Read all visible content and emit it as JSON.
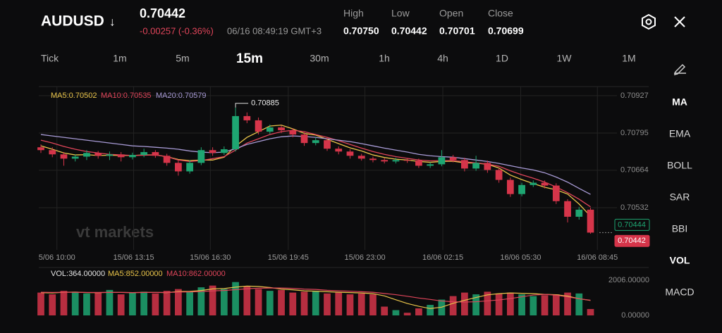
{
  "header": {
    "symbol": "AUDUSD",
    "arrow": "↓",
    "price": "0.70442",
    "change": "-0.00257 (-0.36%)",
    "time": "06/16 08:49:19 GMT+3",
    "stats": [
      {
        "label": "High",
        "value": "0.70750"
      },
      {
        "label": "Low",
        "value": "0.70442"
      },
      {
        "label": "Open",
        "value": "0.70701"
      },
      {
        "label": "Close",
        "value": "0.70699"
      }
    ]
  },
  "timeframes": {
    "items": [
      "Tick",
      "1m",
      "5m",
      "15m",
      "30m",
      "1h",
      "4h",
      "1D",
      "1W",
      "1M"
    ],
    "active": 3
  },
  "indicators": [
    {
      "label": "MA",
      "active": true
    },
    {
      "label": "EMA",
      "active": false
    },
    {
      "label": "BOLL",
      "active": false
    },
    {
      "label": "SAR",
      "active": false
    },
    {
      "label": "BBI",
      "active": false
    },
    {
      "label": "VOL",
      "active": true
    },
    {
      "label": "MACD",
      "active": false
    }
  ],
  "chart_data": [
    {
      "type": "candlestick",
      "watermark": "vt markets",
      "up_color": "#1ea672",
      "down_color": "#d6354a",
      "legend": [
        {
          "label": "MA5:0.70502",
          "color": "#e9c44a"
        },
        {
          "label": "MA10:0.70535",
          "color": "#e0455a"
        },
        {
          "label": "MA20:0.70579",
          "color": "#a89bd6"
        }
      ],
      "xlim": [
        0,
        50
      ],
      "ylim": [
        0.70383,
        0.70959
      ],
      "grid": true,
      "xticks": [
        {
          "value": 1.4,
          "label": "5/06 10:00"
        },
        {
          "value": 8.1,
          "label": "15/06 13:15"
        },
        {
          "value": 14.8,
          "label": "15/06 16:30"
        },
        {
          "value": 21.6,
          "label": "15/06 19:45"
        },
        {
          "value": 28.3,
          "label": "15/06 23:00"
        },
        {
          "value": 35.1,
          "label": "16/06 02:15"
        },
        {
          "value": 41.9,
          "label": "16/06 05:30"
        },
        {
          "value": 48.6,
          "label": "16/06 08:45"
        }
      ],
      "yticks": [
        0.70927,
        0.70795,
        0.70664,
        0.70532
      ],
      "open": [
        0.70745,
        0.70735,
        0.7072,
        0.70705,
        0.70712,
        0.70725,
        0.70715,
        0.7072,
        0.7071,
        0.70718,
        0.70728,
        0.70715,
        0.7069,
        0.7066,
        0.7069,
        0.70735,
        0.70725,
        0.70738,
        0.70855,
        0.7084,
        0.708,
        0.70815,
        0.70805,
        0.7079,
        0.7076,
        0.7077,
        0.7074,
        0.7073,
        0.70715,
        0.70705,
        0.707,
        0.70695,
        0.707,
        0.70698,
        0.7068,
        0.70685,
        0.7071,
        0.707,
        0.7067,
        0.7069,
        0.70665,
        0.7063,
        0.7058,
        0.70612,
        0.7062,
        0.7061,
        0.70555,
        0.705,
        0.70525
      ],
      "high": [
        0.70755,
        0.70745,
        0.70728,
        0.7072,
        0.70735,
        0.70732,
        0.7073,
        0.70728,
        0.70726,
        0.7074,
        0.70735,
        0.70722,
        0.70698,
        0.707,
        0.70745,
        0.70745,
        0.70748,
        0.70885,
        0.70868,
        0.7085,
        0.70825,
        0.70822,
        0.70812,
        0.70798,
        0.7078,
        0.70778,
        0.70748,
        0.70738,
        0.70722,
        0.70712,
        0.70708,
        0.70708,
        0.70706,
        0.70705,
        0.70692,
        0.70735,
        0.70718,
        0.70708,
        0.70715,
        0.70698,
        0.70672,
        0.70638,
        0.7062,
        0.70628,
        0.70628,
        0.70618,
        0.70562,
        0.70535,
        0.70532
      ],
      "low": [
        0.70725,
        0.7071,
        0.7068,
        0.70695,
        0.707,
        0.70705,
        0.707,
        0.70695,
        0.70702,
        0.7071,
        0.70708,
        0.7068,
        0.70645,
        0.70652,
        0.70682,
        0.70715,
        0.70718,
        0.7073,
        0.7083,
        0.7079,
        0.70792,
        0.70795,
        0.7078,
        0.7075,
        0.70752,
        0.70732,
        0.7072,
        0.70705,
        0.70698,
        0.70692,
        0.70688,
        0.70688,
        0.7069,
        0.70672,
        0.70672,
        0.70678,
        0.70692,
        0.7066,
        0.70662,
        0.70655,
        0.7062,
        0.7057,
        0.70572,
        0.70605,
        0.706,
        0.70545,
        0.7048,
        0.7049,
        0.7044
      ],
      "close": [
        0.70735,
        0.7072,
        0.70705,
        0.70712,
        0.70725,
        0.70715,
        0.7072,
        0.7071,
        0.70718,
        0.70728,
        0.70715,
        0.7069,
        0.7066,
        0.7069,
        0.70735,
        0.70725,
        0.70738,
        0.70855,
        0.7084,
        0.708,
        0.70815,
        0.70805,
        0.7079,
        0.7076,
        0.7077,
        0.7074,
        0.7073,
        0.70715,
        0.70705,
        0.707,
        0.70695,
        0.707,
        0.70698,
        0.7068,
        0.70685,
        0.7071,
        0.707,
        0.7067,
        0.7069,
        0.70665,
        0.7063,
        0.7058,
        0.70612,
        0.7062,
        0.7061,
        0.70555,
        0.705,
        0.70525,
        0.70444
      ],
      "series": [
        {
          "name": "MA5",
          "color": "#e9c44a",
          "values": [
            0.7075,
            0.70738,
            0.70725,
            0.70718,
            0.70719,
            0.70716,
            0.70717,
            0.70716,
            0.70716,
            0.70718,
            0.70718,
            0.70712,
            0.70702,
            0.70698,
            0.707,
            0.707,
            0.7071,
            0.70749,
            0.7078,
            0.708,
            0.7082,
            0.70823,
            0.7081,
            0.70794,
            0.70788,
            0.70773,
            0.70758,
            0.70743,
            0.70732,
            0.70718,
            0.70709,
            0.70703,
            0.707,
            0.70695,
            0.70692,
            0.70695,
            0.70696,
            0.7069,
            0.70689,
            0.70685,
            0.70672,
            0.70647,
            0.70631,
            0.70617,
            0.70604,
            0.70595,
            0.7058,
            0.70545,
            0.70502
          ]
        },
        {
          "name": "MA10",
          "color": "#e0455a",
          "values": [
            0.7077,
            0.7076,
            0.70748,
            0.70738,
            0.7073,
            0.70725,
            0.7072,
            0.70718,
            0.70716,
            0.70717,
            0.70718,
            0.70712,
            0.707,
            0.70695,
            0.70698,
            0.70705,
            0.70712,
            0.70735,
            0.7076,
            0.70775,
            0.7079,
            0.708,
            0.70805,
            0.708,
            0.7079,
            0.7078,
            0.70768,
            0.70755,
            0.70742,
            0.7073,
            0.7072,
            0.70712,
            0.70706,
            0.707,
            0.70697,
            0.70698,
            0.70698,
            0.70694,
            0.7069,
            0.70686,
            0.70678,
            0.70662,
            0.70648,
            0.70636,
            0.70622,
            0.70605,
            0.70585,
            0.70562,
            0.70535
          ]
        },
        {
          "name": "MA20",
          "color": "#a89bd6",
          "values": [
            0.7079,
            0.70785,
            0.7078,
            0.70775,
            0.7077,
            0.70765,
            0.7076,
            0.70755,
            0.7075,
            0.70748,
            0.70745,
            0.70742,
            0.70738,
            0.70732,
            0.70728,
            0.70726,
            0.70728,
            0.7074,
            0.70755,
            0.70765,
            0.70775,
            0.70782,
            0.70785,
            0.70783,
            0.7078,
            0.70775,
            0.7077,
            0.70765,
            0.70758,
            0.7075,
            0.70742,
            0.70735,
            0.70728,
            0.7072,
            0.70715,
            0.70712,
            0.7071,
            0.70705,
            0.707,
            0.70695,
            0.70688,
            0.7068,
            0.70672,
            0.70665,
            0.70655,
            0.7064,
            0.70622,
            0.706,
            0.70579
          ]
        }
      ],
      "annotation": {
        "label": "0.70885",
        "x": 17,
        "value": 0.70885
      },
      "price_labels": [
        {
          "value": 0.70444,
          "label": "0.70444",
          "color": "#1ea672"
        },
        {
          "value": 0.70442,
          "label": "0.70442",
          "color": "#d6354a"
        }
      ]
    },
    {
      "type": "bar",
      "xlim": [
        0,
        50
      ],
      "ylim": [
        0,
        2006
      ],
      "yticks": [
        {
          "value": 2006,
          "label": "2006.00000"
        },
        {
          "value": 0,
          "label": "0.00000"
        }
      ],
      "legend": [
        {
          "label": "VOL:364.00000",
          "color": "#e6e6e6"
        },
        {
          "label": "MA5:852.00000",
          "color": "#e9c44a"
        },
        {
          "label": "MA10:862.00000",
          "color": "#e0455a"
        }
      ],
      "values": [
        1300,
        1200,
        1400,
        1350,
        1250,
        1300,
        1450,
        1200,
        1300,
        1350,
        1250,
        1400,
        1500,
        1350,
        1600,
        1700,
        1500,
        1900,
        1650,
        1500,
        1400,
        1450,
        1300,
        1350,
        1400,
        1250,
        1300,
        1200,
        1250,
        1200,
        500,
        300,
        150,
        400,
        600,
        900,
        1100,
        1300,
        1200,
        1350,
        1250,
        1300,
        1200,
        1100,
        1150,
        1200,
        1300,
        1250,
        364
      ],
      "series": [
        {
          "name": "MA5",
          "color": "#e9c44a",
          "values": [
            1300,
            1280,
            1320,
            1330,
            1300,
            1300,
            1310,
            1310,
            1300,
            1310,
            1310,
            1300,
            1360,
            1370,
            1420,
            1510,
            1530,
            1610,
            1670,
            1650,
            1590,
            1500,
            1460,
            1400,
            1380,
            1350,
            1320,
            1300,
            1280,
            1240,
            1110,
            890,
            680,
            520,
            390,
            470,
            690,
            860,
            1020,
            1170,
            1240,
            1280,
            1260,
            1240,
            1200,
            1180,
            1100,
            950,
            852
          ]
        },
        {
          "name": "MA10",
          "color": "#e0455a",
          "values": [
            1320,
            1310,
            1320,
            1320,
            1310,
            1310,
            1310,
            1310,
            1300,
            1310,
            1310,
            1310,
            1330,
            1340,
            1360,
            1400,
            1420,
            1470,
            1520,
            1550,
            1560,
            1560,
            1540,
            1500,
            1480,
            1430,
            1400,
            1380,
            1350,
            1320,
            1250,
            1180,
            1090,
            990,
            910,
            820,
            780,
            760,
            780,
            830,
            880,
            960,
            1060,
            1160,
            1200,
            1150,
            1050,
            950,
            862
          ]
        }
      ]
    }
  ]
}
